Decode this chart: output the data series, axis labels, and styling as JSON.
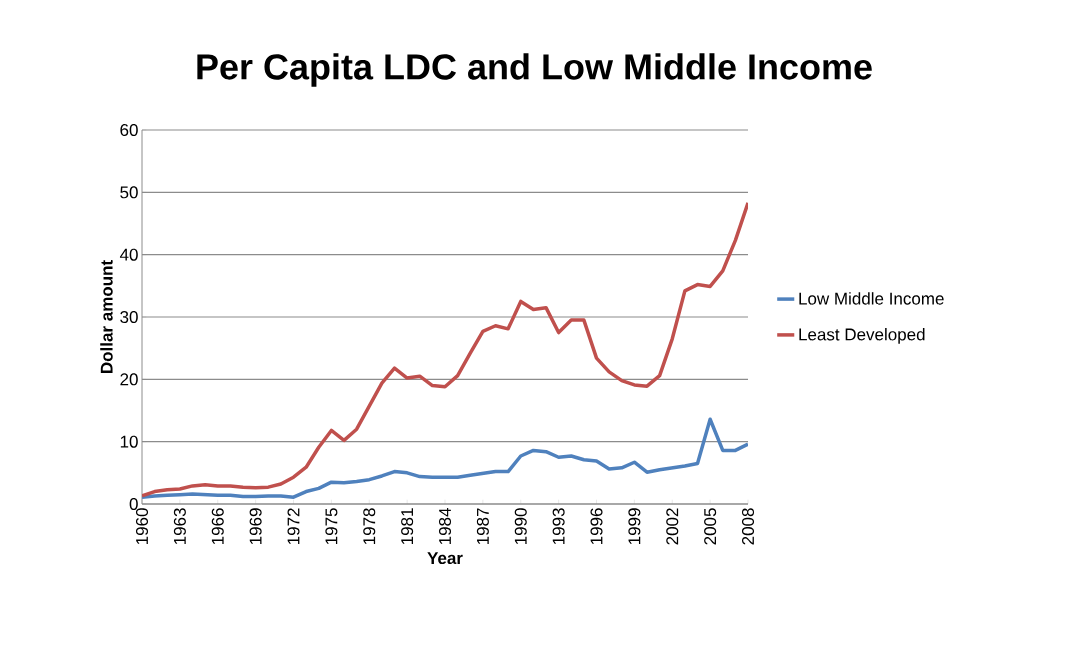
{
  "chart_data": {
    "type": "line",
    "title": "Per Capita LDC and Low Middle Income",
    "xlabel": "Year",
    "ylabel": "Dollar amount",
    "x": [
      1960,
      1961,
      1962,
      1963,
      1964,
      1965,
      1966,
      1967,
      1968,
      1969,
      1970,
      1971,
      1972,
      1973,
      1974,
      1975,
      1976,
      1977,
      1978,
      1979,
      1980,
      1981,
      1982,
      1983,
      1984,
      1985,
      1986,
      1987,
      1988,
      1989,
      1990,
      1991,
      1992,
      1993,
      1994,
      1995,
      1996,
      1997,
      1998,
      1999,
      2000,
      2001,
      2002,
      2003,
      2004,
      2005,
      2006,
      2007,
      2008
    ],
    "xlim": [
      1960,
      2008
    ],
    "xticks": [
      1960,
      1963,
      1966,
      1969,
      1972,
      1975,
      1978,
      1981,
      1984,
      1987,
      1990,
      1993,
      1996,
      1999,
      2002,
      2005,
      2008
    ],
    "ylim": [
      0,
      60
    ],
    "yticks": [
      0,
      10,
      20,
      30,
      40,
      50,
      60
    ],
    "grid": "y",
    "legend": "right",
    "series": [
      {
        "name": "Low Middle Income",
        "color": "#4f81bd",
        "values": [
          1.1,
          1.3,
          1.4,
          1.5,
          1.6,
          1.5,
          1.4,
          1.4,
          1.2,
          1.2,
          1.3,
          1.3,
          1.1,
          2.0,
          2.5,
          3.5,
          3.4,
          3.6,
          3.9,
          4.5,
          5.2,
          5.0,
          4.4,
          4.3,
          4.3,
          4.3,
          4.6,
          4.9,
          5.2,
          5.2,
          7.7,
          8.6,
          8.4,
          7.5,
          7.7,
          7.1,
          6.9,
          5.6,
          5.8,
          6.7,
          5.1,
          5.5,
          5.8,
          6.1,
          6.5,
          13.6,
          8.6,
          8.6,
          9.6
        ]
      },
      {
        "name": "Least Developed",
        "color": "#c0504d",
        "values": [
          1.3,
          2.0,
          2.3,
          2.4,
          2.9,
          3.1,
          2.9,
          2.9,
          2.7,
          2.6,
          2.7,
          3.2,
          4.3,
          5.9,
          9.1,
          11.8,
          10.2,
          12.0,
          15.7,
          19.4,
          21.8,
          20.2,
          20.5,
          19.0,
          18.8,
          20.6,
          24.2,
          27.7,
          28.6,
          28.1,
          32.5,
          31.2,
          31.5,
          27.5,
          29.5,
          29.5,
          23.4,
          21.2,
          19.8,
          19.1,
          18.9,
          20.6,
          26.5,
          34.2,
          35.2,
          34.9,
          37.4,
          42.3,
          48.3
        ]
      }
    ]
  }
}
